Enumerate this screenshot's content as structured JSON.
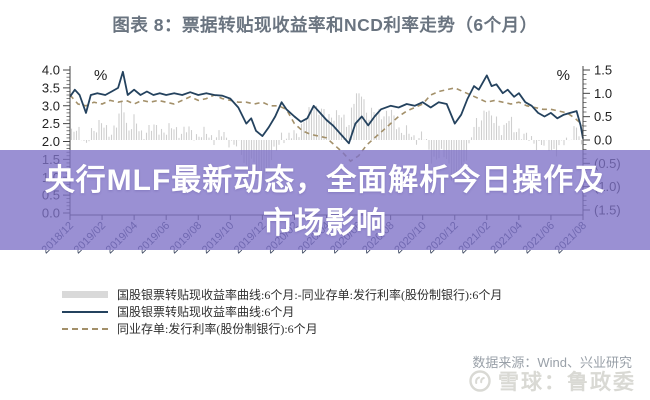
{
  "title": "图表 8：票据转贴现收益率和NCD利率走势（6个月）",
  "overlay_banner": {
    "line1": "央行MLF最新动态，全面解析今日操作及",
    "line2": "市场影响",
    "bg_color": "#7e71c7",
    "text_color": "#ffffff"
  },
  "legend": [
    {
      "label": "国股银票转贴现收益率曲线:6个月:-同业存单:发行利率(股份制银行):6个月",
      "swatch": "bar",
      "color": "#d9d9d9"
    },
    {
      "label": "国股银票转贴现收益率曲线:6个月",
      "swatch": "line",
      "color": "#24425e"
    },
    {
      "label": "同业存单:发行利率(股份制银行):6个月",
      "swatch": "dashed",
      "color": "#a3906a"
    }
  ],
  "source": "数据来源：Wind、兴业研究",
  "watermark": "雪球：鲁政委",
  "chart_data": {
    "type": "line",
    "title": "票据转贴现收益率和NCD利率走势（6个月）",
    "grid": false,
    "left_axis": {
      "unit": "%",
      "min": 0,
      "max": 4,
      "tick_step": 0.5,
      "tick_labels": [
        "4.0",
        "3.5",
        "3.0",
        "2.5",
        "2.0",
        "1.5",
        "1.0",
        "0.5",
        "0.0"
      ]
    },
    "right_axis": {
      "unit": "%",
      "min": -1.5,
      "max": 1.5,
      "tick_step": 0.5,
      "tick_labels": [
        "1.5",
        "1.0",
        "0.5",
        "0.0",
        "(0.5)",
        "(1.0)",
        "(1.5)"
      ]
    },
    "x_tick_labels": [
      "2018/12",
      "2019/02",
      "2019/04",
      "2019/06",
      "2019/08",
      "2019/10",
      "2019/12",
      "2020/02",
      "2020/04",
      "2020/06",
      "2020/08",
      "2020/10",
      "2020/12",
      "2021/02",
      "2021/04",
      "2021/06",
      "2021/08"
    ],
    "x_months_span": 32,
    "series": [
      {
        "name": "国股银票转贴现收益率曲线:6个月",
        "type": "line",
        "axis": "left",
        "color": "#24425e",
        "points": [
          [
            0,
            3.25
          ],
          [
            0.3,
            3.45
          ],
          [
            0.6,
            3.3
          ],
          [
            1,
            2.8
          ],
          [
            1.3,
            3.3
          ],
          [
            1.7,
            3.35
          ],
          [
            2.2,
            3.3
          ],
          [
            2.6,
            3.4
          ],
          [
            3,
            3.5
          ],
          [
            3.3,
            3.95
          ],
          [
            3.6,
            3.3
          ],
          [
            4,
            3.45
          ],
          [
            4.4,
            3.3
          ],
          [
            4.8,
            3.4
          ],
          [
            5.2,
            3.3
          ],
          [
            5.6,
            3.35
          ],
          [
            6,
            3.3
          ],
          [
            6.5,
            3.35
          ],
          [
            7,
            3.3
          ],
          [
            7.5,
            3.38
          ],
          [
            8,
            3.3
          ],
          [
            8.5,
            3.35
          ],
          [
            9,
            3.3
          ],
          [
            9.5,
            3.28
          ],
          [
            10,
            3.2
          ],
          [
            10.5,
            2.95
          ],
          [
            11,
            2.5
          ],
          [
            11.3,
            2.65
          ],
          [
            11.6,
            2.3
          ],
          [
            12,
            2.15
          ],
          [
            12.4,
            2.4
          ],
          [
            12.8,
            2.7
          ],
          [
            13.2,
            3.1
          ],
          [
            13.5,
            2.9
          ],
          [
            14,
            2.7
          ],
          [
            14.4,
            2.55
          ],
          [
            14.8,
            2.65
          ],
          [
            15.2,
            3.0
          ],
          [
            15.6,
            2.8
          ],
          [
            16,
            2.6
          ],
          [
            16.4,
            2.45
          ],
          [
            17,
            2.15
          ],
          [
            17.4,
            1.95
          ],
          [
            17.8,
            2.5
          ],
          [
            18.2,
            2.7
          ],
          [
            18.6,
            2.45
          ],
          [
            19,
            2.7
          ],
          [
            19.4,
            2.9
          ],
          [
            20,
            3.0
          ],
          [
            20.5,
            2.95
          ],
          [
            21,
            3.05
          ],
          [
            21.5,
            3.0
          ],
          [
            22,
            3.1
          ],
          [
            22.5,
            2.95
          ],
          [
            23,
            3.1
          ],
          [
            23.5,
            3.05
          ],
          [
            24,
            2.5
          ],
          [
            24.4,
            2.75
          ],
          [
            24.8,
            3.2
          ],
          [
            25.2,
            3.55
          ],
          [
            25.5,
            3.45
          ],
          [
            26,
            3.85
          ],
          [
            26.3,
            3.55
          ],
          [
            26.6,
            3.6
          ],
          [
            27,
            3.35
          ],
          [
            27.3,
            3.45
          ],
          [
            27.7,
            3.25
          ],
          [
            28,
            3.35
          ],
          [
            28.4,
            3.1
          ],
          [
            28.8,
            3.0
          ],
          [
            29.2,
            2.8
          ],
          [
            29.6,
            2.7
          ],
          [
            30,
            2.8
          ],
          [
            30.4,
            2.65
          ],
          [
            30.8,
            2.75
          ],
          [
            31.2,
            2.8
          ],
          [
            31.6,
            2.85
          ],
          [
            31.85,
            2.45
          ],
          [
            32,
            2.08
          ]
        ]
      },
      {
        "name": "同业存单:发行利率(股份制银行):6个月",
        "type": "line",
        "style": "dashed",
        "axis": "left",
        "color": "#a3906a",
        "points": [
          [
            0,
            3.3
          ],
          [
            0.5,
            3.05
          ],
          [
            1,
            3.0
          ],
          [
            1.5,
            3.1
          ],
          [
            2,
            3.05
          ],
          [
            2.5,
            3.15
          ],
          [
            3,
            3.1
          ],
          [
            3.5,
            3.15
          ],
          [
            4,
            3.05
          ],
          [
            4.5,
            3.15
          ],
          [
            5,
            3.1
          ],
          [
            5.5,
            3.15
          ],
          [
            6,
            3.1
          ],
          [
            6.5,
            3.05
          ],
          [
            7,
            3.15
          ],
          [
            7.5,
            3.25
          ],
          [
            8,
            3.15
          ],
          [
            8.5,
            3.2
          ],
          [
            9,
            3.3
          ],
          [
            9.5,
            3.2
          ],
          [
            10,
            3.15
          ],
          [
            10.5,
            3.1
          ],
          [
            11,
            3.1
          ],
          [
            11.5,
            3.05
          ],
          [
            12,
            3.1
          ],
          [
            12.5,
            3.0
          ],
          [
            13,
            3.0
          ],
          [
            13.5,
            2.9
          ],
          [
            14,
            2.5
          ],
          [
            14.5,
            2.3
          ],
          [
            15,
            2.2
          ],
          [
            15.5,
            2.15
          ],
          [
            16,
            2.1
          ],
          [
            16.5,
            1.9
          ],
          [
            17,
            1.7
          ],
          [
            17.5,
            1.45
          ],
          [
            18,
            1.6
          ],
          [
            18.5,
            1.9
          ],
          [
            19,
            2.1
          ],
          [
            19.5,
            2.3
          ],
          [
            20,
            2.5
          ],
          [
            20.5,
            2.7
          ],
          [
            21,
            2.85
          ],
          [
            21.5,
            2.95
          ],
          [
            22,
            3.05
          ],
          [
            22.5,
            3.3
          ],
          [
            23,
            3.4
          ],
          [
            23.5,
            3.45
          ],
          [
            24,
            3.5
          ],
          [
            24.5,
            3.4
          ],
          [
            25,
            3.3
          ],
          [
            25.5,
            3.2
          ],
          [
            26,
            3.1
          ],
          [
            26.5,
            3.15
          ],
          [
            27,
            3.1
          ],
          [
            27.5,
            3.05
          ],
          [
            28,
            3.1
          ],
          [
            28.5,
            3.0
          ],
          [
            29,
            2.95
          ],
          [
            29.5,
            2.9
          ],
          [
            30,
            2.9
          ],
          [
            30.5,
            2.85
          ],
          [
            31,
            2.8
          ],
          [
            31.5,
            2.65
          ],
          [
            32,
            2.45
          ]
        ]
      },
      {
        "name": "国股银票转贴现收益率曲线:6个月:-同业存单:发行利率(股份制银行):6个月",
        "type": "bar",
        "axis": "right",
        "color": "#cfcfcf",
        "derived": "series0_minus_series1"
      }
    ]
  }
}
